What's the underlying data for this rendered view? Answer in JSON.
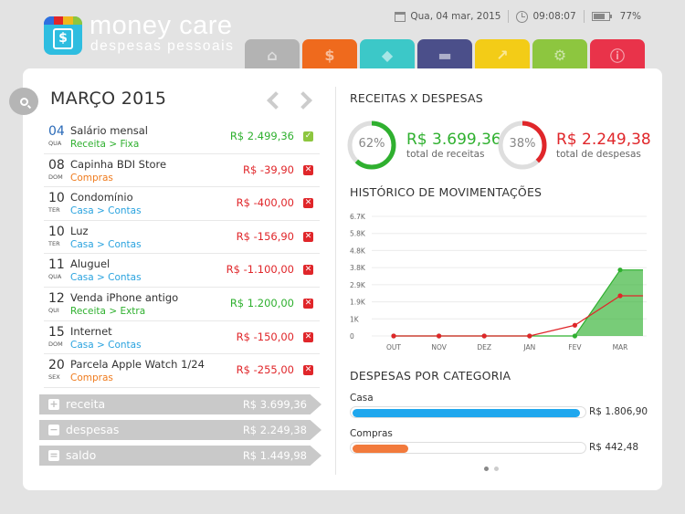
{
  "brand": {
    "title": "money care",
    "subtitle": "despesas pessoais",
    "icon_glyph": "$",
    "icon_strip_colors": [
      "#2e6fe0",
      "#e0262a",
      "#f0b81d",
      "#8dc63f"
    ]
  },
  "status": {
    "date": "Qua, 04 mar, 2015",
    "time": "09:08:07",
    "battery": "77%",
    "battery_level": 0.77
  },
  "tabs": [
    {
      "icon": "home-icon",
      "glyph": "⌂",
      "color": "#b3b3b3"
    },
    {
      "icon": "dollar-icon",
      "glyph": "$",
      "color": "#ef6a1d"
    },
    {
      "icon": "tag-icon",
      "glyph": "◆",
      "color": "#3cc8c8"
    },
    {
      "icon": "archive-icon",
      "glyph": "▬",
      "color": "#4b4f8a"
    },
    {
      "icon": "chart-icon",
      "glyph": "↗",
      "color": "#f3cc17"
    },
    {
      "icon": "gear-icon",
      "glyph": "⚙",
      "color": "#8dc63f"
    },
    {
      "icon": "info-icon",
      "glyph": "ⓘ",
      "color": "#e9334a"
    }
  ],
  "ledger": {
    "month_title": "MARÇO 2015",
    "transactions": [
      {
        "day": "04",
        "weekday": "QUA",
        "name": "Salário mensal",
        "category": "Receita > Fixa",
        "cat_color": "green",
        "value": "R$ 2.499,36",
        "type": "income",
        "mark": "✓"
      },
      {
        "day": "08",
        "weekday": "DOM",
        "name": "Capinha BDI Store",
        "category": "Compras",
        "cat_color": "orange",
        "value": "R$ -39,90",
        "type": "expense",
        "mark": "✕"
      },
      {
        "day": "10",
        "weekday": "TER",
        "name": "Condomínio",
        "category": "Casa > Contas",
        "cat_color": "blue",
        "value": "R$ -400,00",
        "type": "expense",
        "mark": "✕"
      },
      {
        "day": "10",
        "weekday": "TER",
        "name": "Luz",
        "category": "Casa > Contas",
        "cat_color": "blue",
        "value": "R$ -156,90",
        "type": "expense",
        "mark": "✕"
      },
      {
        "day": "11",
        "weekday": "QUA",
        "name": "Aluguel",
        "category": "Casa > Contas",
        "cat_color": "blue",
        "value": "R$ -1.100,00",
        "type": "expense",
        "mark": "✕"
      },
      {
        "day": "12",
        "weekday": "QUI",
        "name": "Venda iPhone antigo",
        "category": "Receita > Extra",
        "cat_color": "green",
        "value": "R$ 1.200,00",
        "type": "income",
        "mark": "✕"
      },
      {
        "day": "15",
        "weekday": "DOM",
        "name": "Internet",
        "category": "Casa > Contas",
        "cat_color": "blue",
        "value": "R$ -150,00",
        "type": "expense",
        "mark": "✕"
      },
      {
        "day": "20",
        "weekday": "SEX",
        "name": "Parcela Apple Watch 1/24",
        "category": "Compras",
        "cat_color": "orange",
        "value": "R$ -255,00",
        "type": "expense",
        "mark": "✕"
      }
    ],
    "summary": [
      {
        "sign": "+",
        "label": "receita",
        "amount": "R$ 3.699,36"
      },
      {
        "sign": "−",
        "label": "despesas",
        "amount": "R$ 2.249,38"
      },
      {
        "sign": "=",
        "label": "saldo",
        "amount": "R$ 1.449,98"
      }
    ]
  },
  "overview": {
    "title": "RECEITAS X DESPESAS",
    "income": {
      "percent": 62,
      "percent_label": "62%",
      "value": "R$ 3.699,36",
      "label": "total de receitas",
      "color": "#2fb02f"
    },
    "expense": {
      "percent": 38,
      "percent_label": "38%",
      "value": "R$ 2.249,38",
      "label": "total de despesas",
      "color": "#e0262a"
    }
  },
  "history": {
    "title": "HISTÓRICO DE MOVIMENTAÇÕES"
  },
  "chart_data": {
    "type": "area",
    "categories": [
      "OUT",
      "NOV",
      "DEZ",
      "JAN",
      "FEV",
      "MAR"
    ],
    "y_ticks": [
      "0",
      "1K",
      "1.9K",
      "2.9K",
      "3.8K",
      "4.8K",
      "5.8K",
      "6.7K"
    ],
    "ylim": [
      0,
      6700
    ],
    "series": [
      {
        "name": "",
        "color": "#2fb02f",
        "values": [
          0,
          0,
          0,
          0,
          0,
          3699.36
        ]
      },
      {
        "name": "",
        "color": "#e0262a",
        "values": [
          0,
          0,
          0,
          0,
          600,
          2249.38
        ]
      }
    ],
    "grid": true
  },
  "categories_section": {
    "title": "DESPESAS POR CATEGORIA",
    "items": [
      {
        "name": "Casa",
        "amount": "R$ 1.806,90",
        "fraction": 0.985,
        "color": "#1fa7ee"
      },
      {
        "name": "Compras",
        "amount": "R$ 442,48",
        "fraction": 0.24,
        "color": "#f27a3c"
      }
    ]
  },
  "pager": {
    "pages": 2,
    "active": 0
  }
}
